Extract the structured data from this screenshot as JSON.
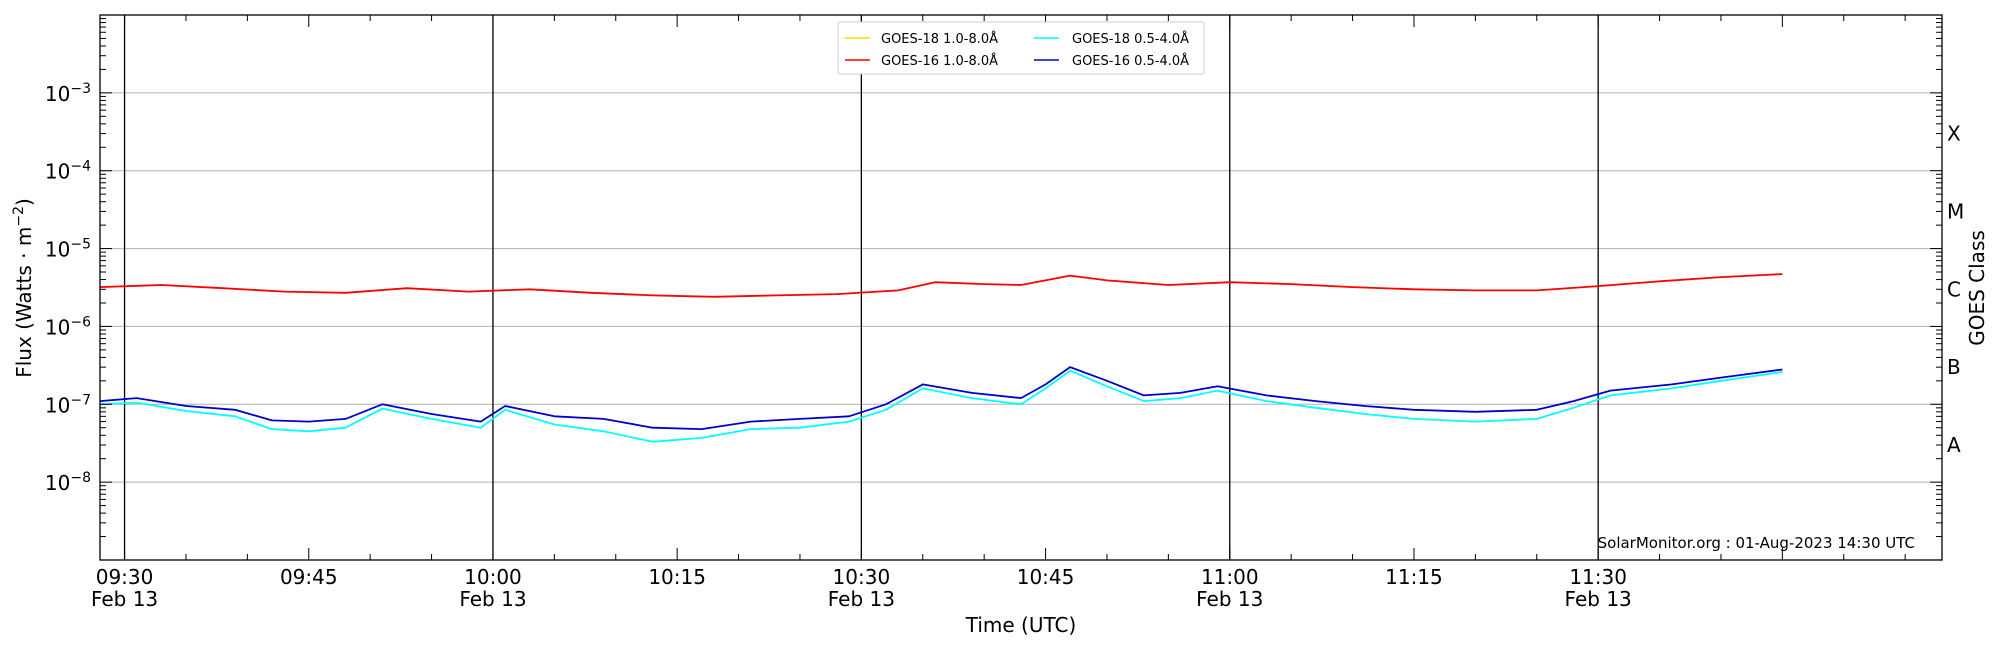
{
  "chart_data": {
    "type": "line",
    "xlabel": "Time (UTC)",
    "ylabel_main": "Flux (Watts · m",
    "ylabel_exp": "−2",
    "ylabel_close": ")",
    "y2label": "GOES Class",
    "xlim": [
      "09:28",
      "11:58"
    ],
    "ylim": [
      1e-09,
      0.01
    ],
    "yscale": "log",
    "grid": "horizontal",
    "legend_position": "top-center",
    "x_ticks": [
      {
        "time": "09:30",
        "label": "09:30",
        "date": "Feb 13",
        "major": true
      },
      {
        "time": "09:45",
        "label": "09:45",
        "date": "",
        "major": false
      },
      {
        "time": "10:00",
        "label": "10:00",
        "date": "Feb 13",
        "major": true
      },
      {
        "time": "10:15",
        "label": "10:15",
        "date": "",
        "major": false
      },
      {
        "time": "10:30",
        "label": "10:30",
        "date": "Feb 13",
        "major": true
      },
      {
        "time": "10:45",
        "label": "10:45",
        "date": "",
        "major": false
      },
      {
        "time": "11:00",
        "label": "11:00",
        "date": "Feb 13",
        "major": true
      },
      {
        "time": "11:15",
        "label": "11:15",
        "date": "",
        "major": false
      },
      {
        "time": "11:30",
        "label": "11:30",
        "date": "Feb 13",
        "major": true
      }
    ],
    "y_ticks": [
      {
        "exp": -8,
        "base": "10",
        "sup": "−8"
      },
      {
        "exp": -7,
        "base": "10",
        "sup": "−7"
      },
      {
        "exp": -6,
        "base": "10",
        "sup": "−6"
      },
      {
        "exp": -5,
        "base": "10",
        "sup": "−5"
      },
      {
        "exp": -4,
        "base": "10",
        "sup": "−4"
      },
      {
        "exp": -3,
        "base": "10",
        "sup": "−3"
      }
    ],
    "goes_classes": [
      {
        "label": "A",
        "value": 3e-08
      },
      {
        "label": "B",
        "value": 3e-07
      },
      {
        "label": "C",
        "value": 3e-06
      },
      {
        "label": "M",
        "value": 3e-05
      },
      {
        "label": "X",
        "value": 0.0003
      }
    ],
    "legend": [
      {
        "label": "GOES-18 1.0-8.0Å",
        "color": "#ffd700"
      },
      {
        "label": "GOES-18 0.5-4.0Å",
        "color": "#00ffff"
      },
      {
        "label": "GOES-16 1.0-8.0Å",
        "color": "#ff0000"
      },
      {
        "label": "GOES-16 0.5-4.0Å",
        "color": "#0000cd"
      }
    ],
    "watermark": "SolarMonitor.org : 01-Aug-2023 14:30 UTC",
    "series": [
      {
        "name": "GOES-16 1.0-8.0Å",
        "color": "#ff0000",
        "x": [
          "09:28",
          "09:33",
          "09:38",
          "09:43",
          "09:48",
          "09:53",
          "09:58",
          "10:03",
          "10:08",
          "10:13",
          "10:18",
          "10:23",
          "10:28",
          "10:33",
          "10:36",
          "10:40",
          "10:43",
          "10:47",
          "10:50",
          "10:55",
          "11:00",
          "11:05",
          "11:10",
          "11:15",
          "11:20",
          "11:25",
          "11:30",
          "11:35",
          "11:40",
          "11:45"
        ],
        "y": [
          3.2e-06,
          3.4e-06,
          3.1e-06,
          2.8e-06,
          2.7e-06,
          3.1e-06,
          2.8e-06,
          3e-06,
          2.7e-06,
          2.5e-06,
          2.4e-06,
          2.5e-06,
          2.6e-06,
          2.9e-06,
          3.7e-06,
          3.5e-06,
          3.4e-06,
          4.5e-06,
          3.9e-06,
          3.4e-06,
          3.7e-06,
          3.5e-06,
          3.2e-06,
          3e-06,
          2.9e-06,
          2.9e-06,
          3.3e-06,
          3.8e-06,
          4.3e-06,
          4.7e-06
        ]
      },
      {
        "name": "GOES-16 0.5-4.0Å",
        "color": "#0000cd",
        "x": [
          "09:28",
          "09:31",
          "09:35",
          "09:39",
          "09:42",
          "09:45",
          "09:48",
          "09:51",
          "09:55",
          "09:59",
          "10:01",
          "10:05",
          "10:09",
          "10:13",
          "10:17",
          "10:21",
          "10:25",
          "10:29",
          "10:32",
          "10:35",
          "10:39",
          "10:43",
          "10:45",
          "10:47",
          "10:50",
          "10:53",
          "10:56",
          "10:59",
          "11:03",
          "11:07",
          "11:11",
          "11:15",
          "11:20",
          "11:25",
          "11:28",
          "11:31",
          "11:36",
          "11:40",
          "11:45"
        ],
        "y": [
          1.1e-07,
          1.2e-07,
          9.5e-08,
          8.5e-08,
          6.2e-08,
          6e-08,
          6.5e-08,
          1e-07,
          7.5e-08,
          6e-08,
          9.5e-08,
          7e-08,
          6.5e-08,
          5e-08,
          4.8e-08,
          6e-08,
          6.5e-08,
          7e-08,
          1e-07,
          1.8e-07,
          1.4e-07,
          1.2e-07,
          1.8e-07,
          3e-07,
          2e-07,
          1.3e-07,
          1.4e-07,
          1.7e-07,
          1.3e-07,
          1.1e-07,
          9.5e-08,
          8.5e-08,
          8e-08,
          8.5e-08,
          1.1e-07,
          1.5e-07,
          1.8e-07,
          2.2e-07,
          2.8e-07
        ]
      },
      {
        "name": "GOES-18 0.5-4.0Å",
        "color": "#00ffff",
        "x": [
          "09:28",
          "09:31",
          "09:35",
          "09:39",
          "09:42",
          "09:45",
          "09:48",
          "09:51",
          "09:55",
          "09:59",
          "10:01",
          "10:05",
          "10:09",
          "10:13",
          "10:17",
          "10:21",
          "10:25",
          "10:29",
          "10:32",
          "10:35",
          "10:39",
          "10:43",
          "10:45",
          "10:47",
          "10:50",
          "10:53",
          "10:56",
          "10:59",
          "11:03",
          "11:07",
          "11:11",
          "11:15",
          "11:20",
          "11:25",
          "11:28",
          "11:31",
          "11:36",
          "11:40",
          "11:45"
        ],
        "y": [
          1e-07,
          1.05e-07,
          8.2e-08,
          7e-08,
          4.8e-08,
          4.5e-08,
          5e-08,
          8.8e-08,
          6.5e-08,
          5e-08,
          8.5e-08,
          5.5e-08,
          4.5e-08,
          3.3e-08,
          3.7e-08,
          4.8e-08,
          5e-08,
          6e-08,
          8.5e-08,
          1.6e-07,
          1.2e-07,
          1e-07,
          1.6e-07,
          2.7e-07,
          1.7e-07,
          1.1e-07,
          1.2e-07,
          1.5e-07,
          1.1e-07,
          9e-08,
          7.5e-08,
          6.5e-08,
          6e-08,
          6.5e-08,
          9e-08,
          1.3e-07,
          1.6e-07,
          2e-07,
          2.6e-07
        ]
      }
    ]
  }
}
